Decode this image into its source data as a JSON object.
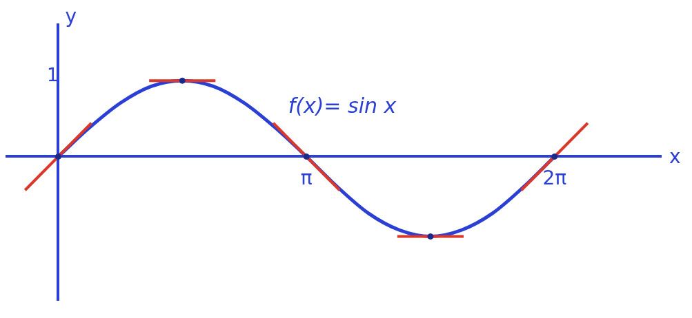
{
  "chart_data": {
    "type": "line",
    "title": "f(x)= sin x",
    "x_label": "x",
    "y_label": "y",
    "x": [
      0,
      0.3927,
      0.7854,
      1.1781,
      1.5708,
      1.9635,
      2.3562,
      2.7489,
      3.1416,
      3.5343,
      3.927,
      4.3197,
      4.7124,
      5.1051,
      5.4978,
      5.8905,
      6.2832
    ],
    "values": [
      0,
      0.36,
      0.67,
      0.88,
      0.95,
      0.88,
      0.67,
      0.36,
      0,
      -0.38,
      -0.71,
      -0.92,
      -1.0,
      -0.92,
      -0.71,
      -0.38,
      0
    ],
    "color": "#2b3fd4",
    "marker": "none",
    "tangents": {
      "x": [
        0,
        1.5708,
        3.1416,
        4.7124,
        6.2832
      ],
      "y": [
        0,
        0.95,
        0,
        -1.0,
        0
      ],
      "slopes": [
        1,
        0,
        -1,
        0,
        1
      ],
      "color": "#d9382a"
    },
    "xlim": [
      -0.65,
      7.63
    ],
    "ylim": [
      -1.8,
      1.65
    ],
    "xticks": [
      {
        "value": 3.1416,
        "label": "π"
      },
      {
        "value": 6.2832,
        "label": "2π"
      }
    ],
    "yticks": [
      1
    ],
    "grid": false
  }
}
